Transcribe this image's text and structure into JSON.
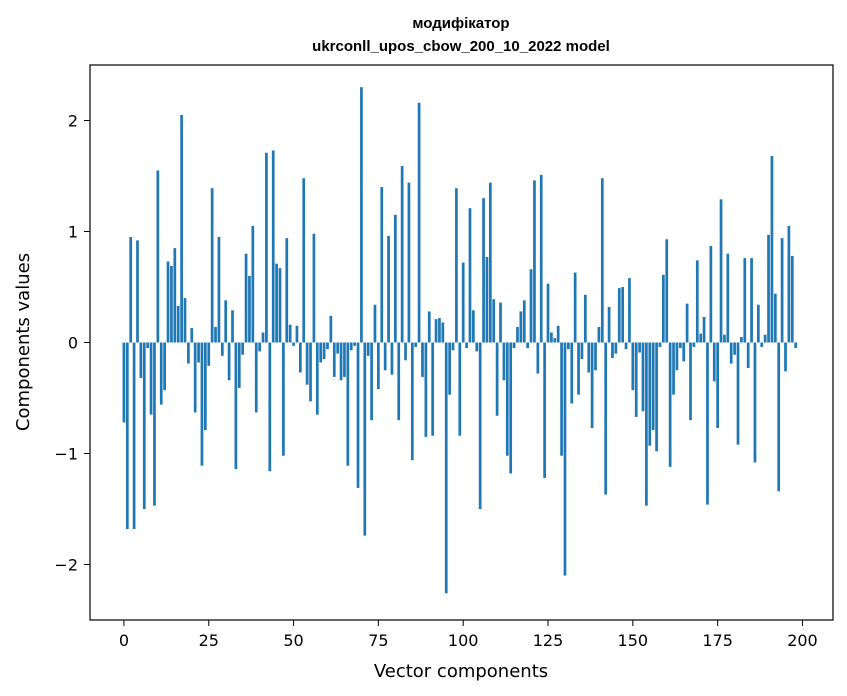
{
  "chart_data": {
    "type": "bar",
    "title": "модифікатор",
    "subtitle": "ukrconll_upos_cbow_200_10_2022 model",
    "xlabel": "Vector components",
    "ylabel": "Components values",
    "xlim": [
      -10,
      209
    ],
    "ylim": [
      -2.5,
      2.5
    ],
    "xticks": [
      0,
      25,
      50,
      75,
      100,
      125,
      150,
      175,
      200
    ],
    "yticks": [
      -2,
      -1,
      0,
      1,
      2
    ],
    "xtick_labels": [
      "0",
      "25",
      "50",
      "75",
      "100",
      "125",
      "150",
      "175",
      "200"
    ],
    "ytick_labels": [
      "−2",
      "−1",
      "0",
      "1",
      "2"
    ],
    "grid": false,
    "bar_color": "#1f77b4",
    "values": [
      -0.72,
      -1.68,
      0.95,
      -1.68,
      0.92,
      -0.32,
      -1.5,
      -0.05,
      -0.65,
      -1.47,
      1.55,
      -0.56,
      -0.43,
      0.73,
      0.69,
      0.85,
      0.33,
      2.05,
      0.4,
      -0.19,
      0.13,
      -0.63,
      -0.18,
      -1.11,
      -0.79,
      -0.21,
      1.39,
      0.14,
      0.95,
      -0.12,
      0.38,
      -0.34,
      0.29,
      -1.14,
      -0.41,
      -0.11,
      0.8,
      0.6,
      1.05,
      -0.63,
      -0.08,
      0.09,
      1.71,
      -1.16,
      1.73,
      0.71,
      0.67,
      -1.02,
      0.94,
      0.16,
      -0.03,
      0.15,
      -0.27,
      1.48,
      -0.38,
      -0.53,
      0.98,
      -0.65,
      -0.18,
      -0.15,
      -0.06,
      0.24,
      -0.31,
      -0.1,
      -0.34,
      -0.31,
      -1.11,
      -0.07,
      -0.03,
      -1.31,
      2.3,
      -1.74,
      -0.12,
      -0.7,
      0.34,
      -0.42,
      1.4,
      -0.25,
      0.96,
      -0.29,
      1.15,
      -0.7,
      1.59,
      -0.16,
      1.44,
      -1.06,
      -0.04,
      2.16,
      -0.31,
      -0.85,
      0.28,
      -0.84,
      0.21,
      0.22,
      0.18,
      -2.26,
      -0.47,
      -0.07,
      1.39,
      -0.84,
      0.72,
      -0.05,
      1.21,
      0.29,
      -0.08,
      -1.5,
      1.3,
      0.77,
      1.44,
      0.39,
      -0.66,
      0.36,
      -0.34,
      -1.02,
      -1.18,
      -0.05,
      0.14,
      0.28,
      0.38,
      -0.05,
      0.66,
      1.46,
      -0.28,
      1.51,
      -1.22,
      0.53,
      0.09,
      0.04,
      0.15,
      -1.02,
      -2.1,
      -0.06,
      -0.55,
      0.63,
      -0.47,
      -0.15,
      0.43,
      -0.27,
      -0.77,
      -0.25,
      0.14,
      1.48,
      -1.37,
      0.32,
      -0.14,
      -0.1,
      0.49,
      0.5,
      -0.06,
      0.58,
      -0.43,
      -0.67,
      -0.09,
      -0.62,
      -1.47,
      -0.93,
      -0.79,
      -0.98,
      -0.04,
      0.61,
      0.93,
      -1.12,
      -0.47,
      -0.25,
      -0.05,
      -0.17,
      0.35,
      -0.7,
      -0.04,
      0.74,
      0.08,
      0.23,
      -1.46,
      0.87,
      -0.35,
      -0.77,
      1.29,
      0.07,
      0.8,
      -0.19,
      -0.11,
      -0.92,
      0.05,
      0.76,
      -0.23,
      0.76,
      -1.08,
      0.34,
      -0.04,
      0.07,
      0.97,
      1.68,
      0.44,
      -1.34,
      0.94,
      -0.26,
      1.05,
      0.78,
      -0.05
    ]
  }
}
